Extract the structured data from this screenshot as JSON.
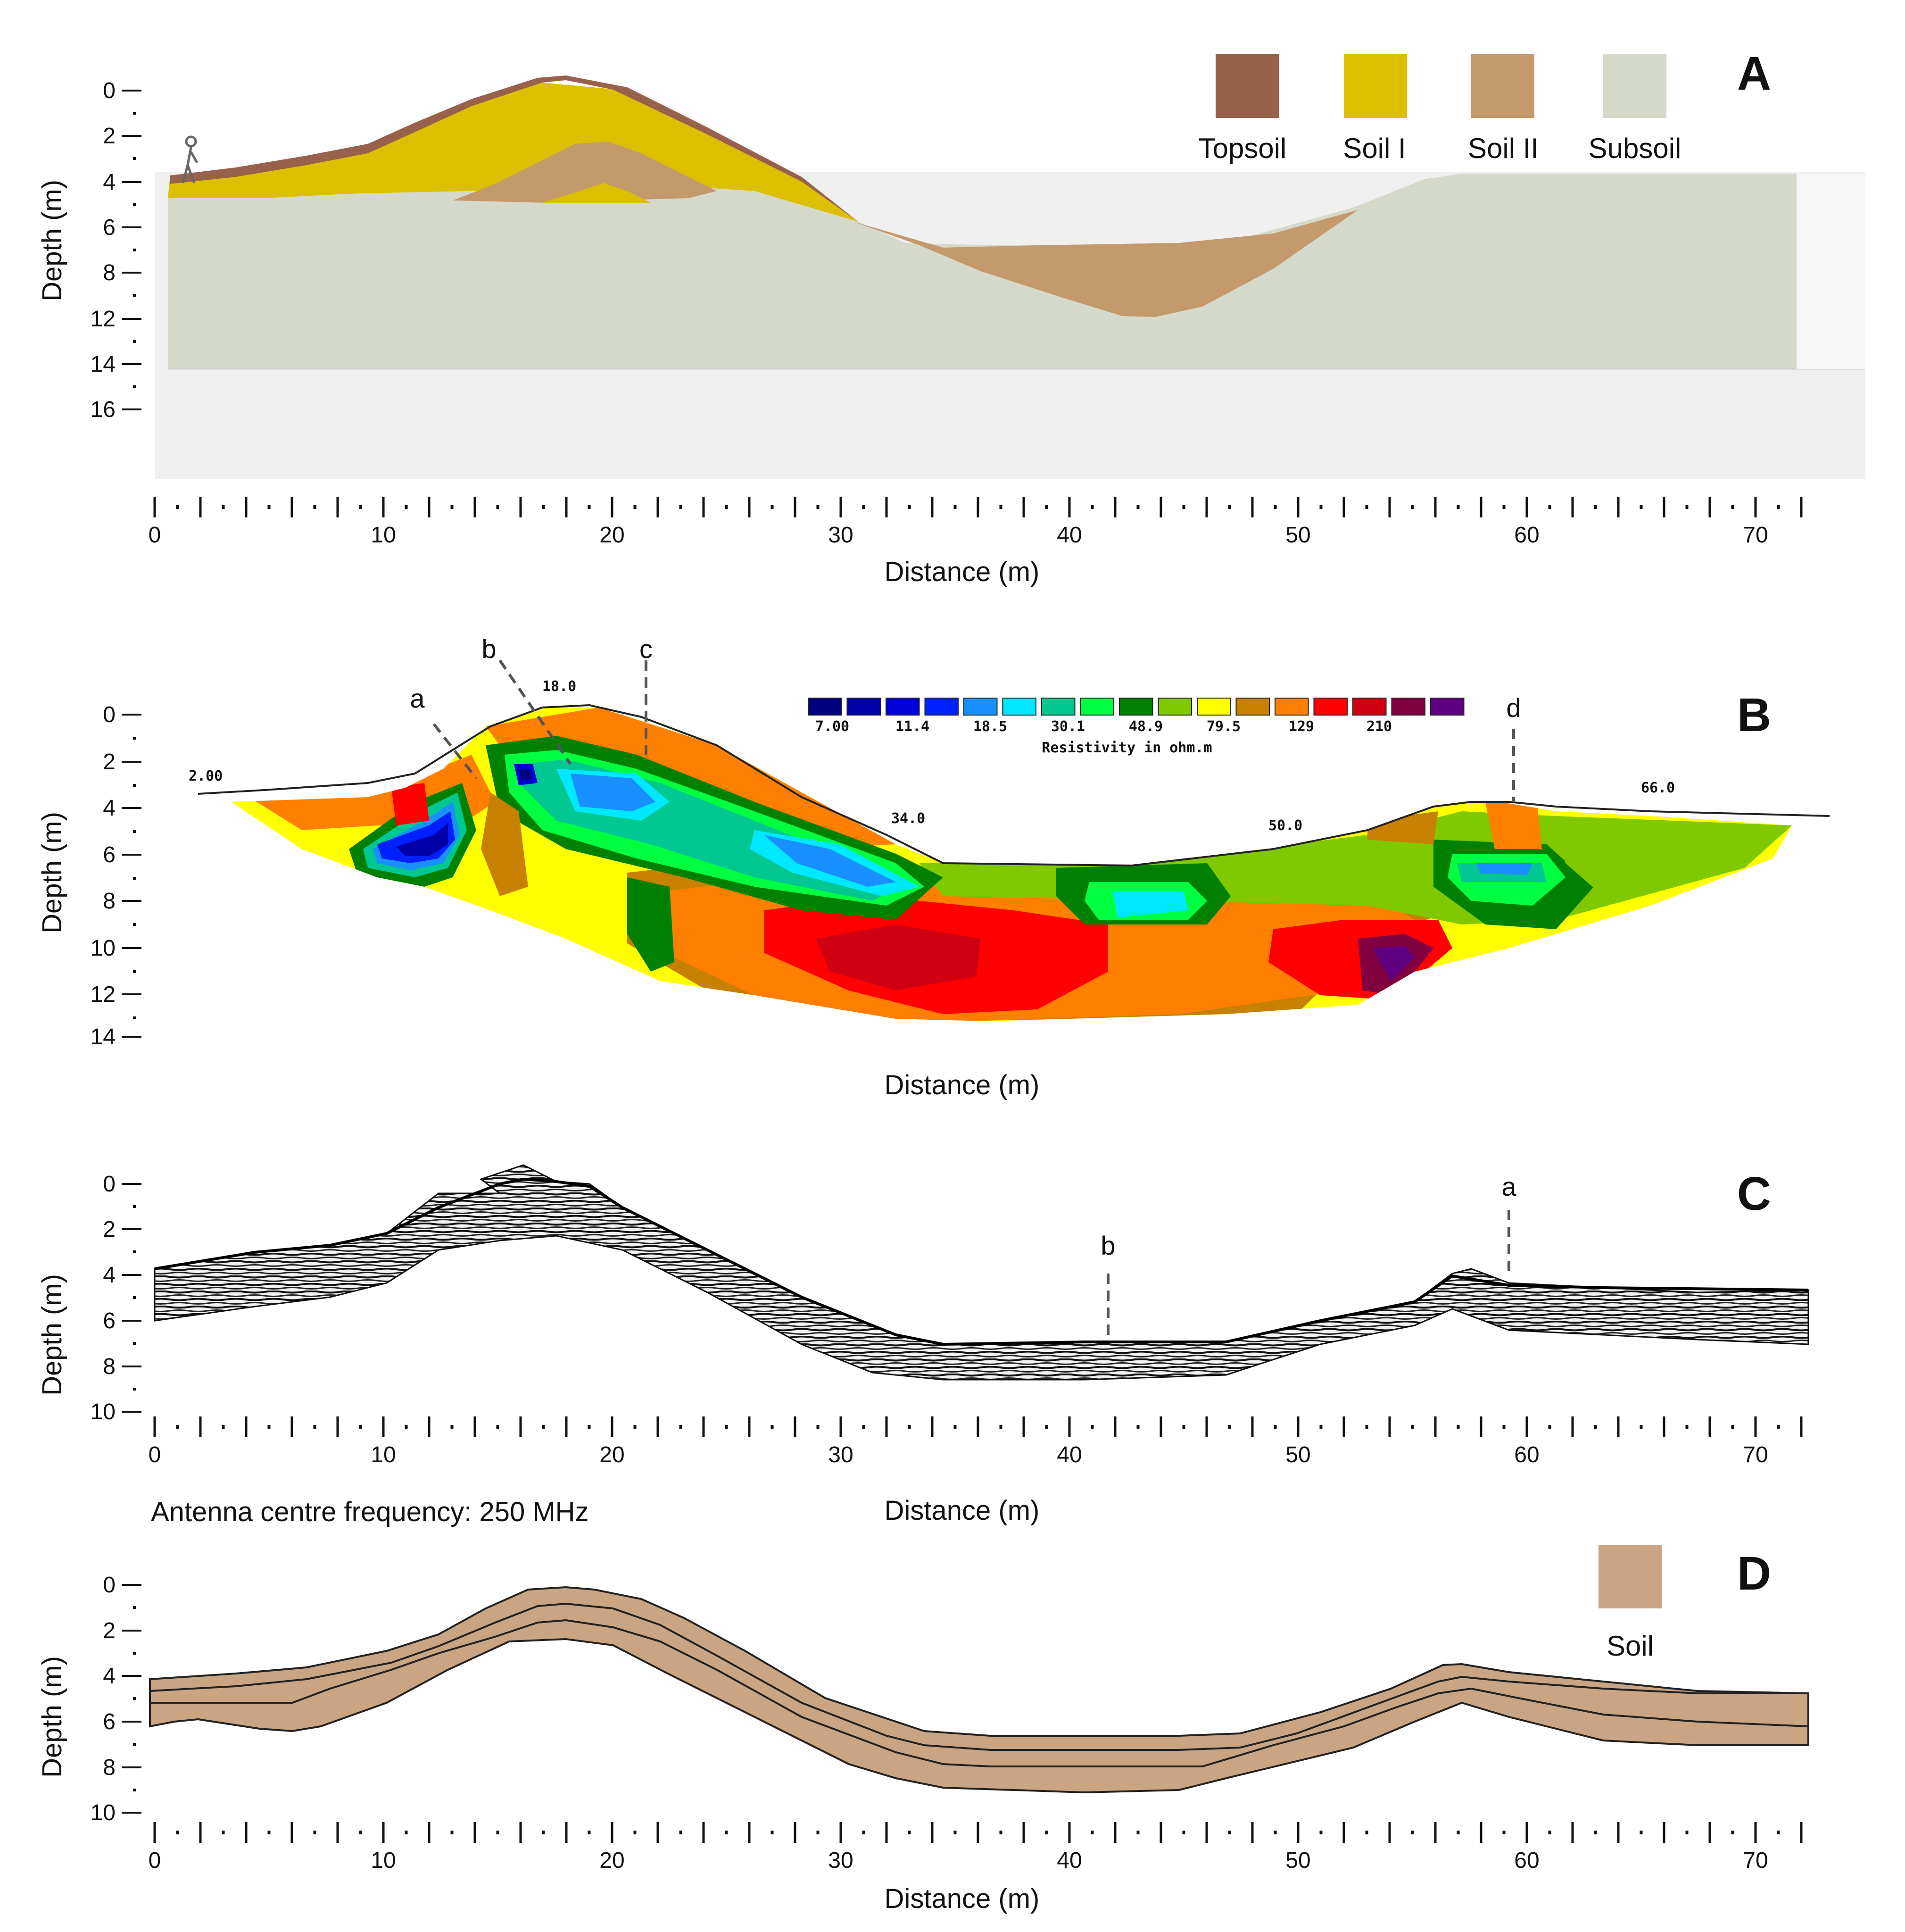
{
  "panels": {
    "A": {
      "letter": "A",
      "ylabel": "Depth (m)",
      "xlabel": "Distance (m)",
      "depth_ticks": [
        "0",
        "2",
        "4",
        "6",
        "8",
        "12",
        "14",
        "16"
      ],
      "distance_ticks": [
        "0",
        "10",
        "20",
        "30",
        "40",
        "50",
        "60",
        "70"
      ],
      "legend": [
        {
          "label": "Topsoil",
          "color": "#98614c"
        },
        {
          "label": "Soil I",
          "color": "#dcc000"
        },
        {
          "label": "Soil II",
          "color": "#c49a6c"
        },
        {
          "label": "Subsoil",
          "color": "#d5d9ca"
        }
      ]
    },
    "B": {
      "letter": "B",
      "ylabel": "Depth (m)",
      "xlabel": "Distance (m)",
      "depth_ticks": [
        "0",
        "2",
        "4",
        "6",
        "8",
        "10",
        "12",
        "14"
      ],
      "profile_marks": [
        "2.00",
        "18.0",
        "34.0",
        "50.0",
        "66.0"
      ],
      "markers": [
        "a",
        "b",
        "c",
        "d"
      ],
      "colorbar": {
        "title": "Resistivity in ohm.m",
        "values": [
          "7.00",
          "11.4",
          "18.5",
          "30.1",
          "48.9",
          "79.5",
          "129",
          "210"
        ],
        "colors": [
          "#000080",
          "#0000a8",
          "#0000d8",
          "#0020ff",
          "#1890ff",
          "#00e8ff",
          "#00c890",
          "#00ff40",
          "#008000",
          "#80c800",
          "#ffff00",
          "#c88000",
          "#ff8000",
          "#ff0000",
          "#d00010",
          "#800040",
          "#600080"
        ]
      }
    },
    "C": {
      "letter": "C",
      "ylabel": "Depth (m)",
      "xlabel": "Distance (m)",
      "depth_ticks": [
        "0",
        "2",
        "4",
        "6",
        "8",
        "10"
      ],
      "distance_ticks": [
        "0",
        "10",
        "20",
        "30",
        "40",
        "50",
        "60",
        "70"
      ],
      "markers": [
        "b",
        "a"
      ],
      "caption": "Antenna centre frequency: 250 MHz"
    },
    "D": {
      "letter": "D",
      "ylabel": "Depth (m)",
      "xlabel": "Distance (m)",
      "depth_ticks": [
        "0",
        "2",
        "4",
        "6",
        "8",
        "10"
      ],
      "distance_ticks": [
        "0",
        "10",
        "20",
        "30",
        "40",
        "50",
        "60",
        "70"
      ],
      "legend": [
        {
          "label": "Soil",
          "color": "#c9a584"
        }
      ]
    }
  }
}
